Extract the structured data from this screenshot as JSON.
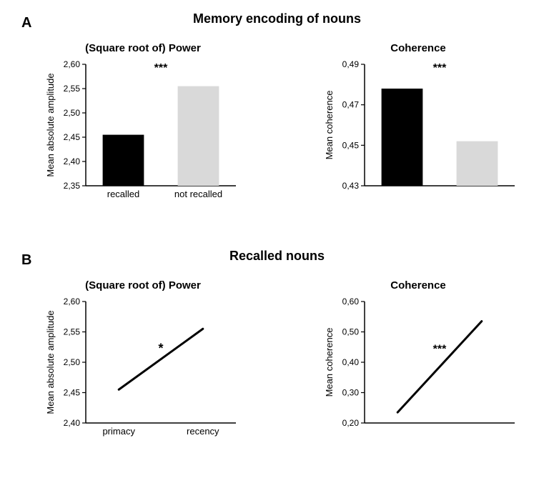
{
  "panelA": {
    "letter": "A",
    "title": "Memory encoding of nouns",
    "title_fontsize": 18,
    "title_fontweight": "bold",
    "letter_fontsize": 20,
    "power": {
      "subtitle": "(Square root of) Power",
      "ylabel": "Mean absolute amplitude",
      "categories": [
        "recalled",
        "not recalled"
      ],
      "values": [
        2.455,
        2.555
      ],
      "bar_colors": [
        "#000000",
        "#d9d9d9"
      ],
      "ylim": [
        2.35,
        2.6
      ],
      "yticks": [
        "2,35",
        "2,40",
        "2,45",
        "2,50",
        "2,55",
        "2,60"
      ],
      "ytick_values": [
        2.35,
        2.4,
        2.45,
        2.5,
        2.55,
        2.6
      ],
      "sig": "***",
      "sig_fontsize": 16,
      "label_fontsize": 13,
      "tick_fontsize": 12,
      "subtitle_fontsize": 15,
      "bar_width": 0.55,
      "background": "#ffffff",
      "axis_color": "#000000"
    },
    "coherence": {
      "subtitle": "Coherence",
      "ylabel": "Mean coherence",
      "categories": [
        "",
        ""
      ],
      "values": [
        0.478,
        0.452
      ],
      "bar_colors": [
        "#000000",
        "#d9d9d9"
      ],
      "ylim": [
        0.43,
        0.49
      ],
      "yticks": [
        "0,43",
        "0,45",
        "0,47",
        "0,49"
      ],
      "ytick_values": [
        0.43,
        0.45,
        0.47,
        0.49
      ],
      "sig": "***",
      "sig_fontsize": 16,
      "label_fontsize": 13,
      "tick_fontsize": 12,
      "subtitle_fontsize": 15,
      "bar_width": 0.55,
      "background": "#ffffff",
      "axis_color": "#000000"
    }
  },
  "panelB": {
    "letter": "B",
    "title": "Recalled nouns",
    "title_fontsize": 18,
    "title_fontweight": "bold",
    "letter_fontsize": 20,
    "power": {
      "subtitle": "(Square root of) Power",
      "ylabel": "Mean absolute amplitude",
      "xcats": [
        "primacy",
        "recency"
      ],
      "yvals": [
        2.455,
        2.555
      ],
      "ylim": [
        2.4,
        2.6
      ],
      "yticks": [
        "2,40",
        "2,45",
        "2,50",
        "2,55",
        "2,60"
      ],
      "ytick_values": [
        2.4,
        2.45,
        2.5,
        2.55,
        2.6
      ],
      "sig": "*",
      "sig_fontsize": 18,
      "label_fontsize": 13,
      "tick_fontsize": 12,
      "subtitle_fontsize": 15,
      "line_color": "#000000",
      "line_width": 3,
      "background": "#ffffff",
      "axis_color": "#000000"
    },
    "coherence": {
      "subtitle": "Coherence",
      "ylabel": "Mean coherence",
      "xcats": [
        "",
        ""
      ],
      "yvals": [
        0.235,
        0.535
      ],
      "ylim": [
        0.2,
        0.6
      ],
      "yticks": [
        "0,20",
        "0,30",
        "0,40",
        "0,50",
        "0,60"
      ],
      "ytick_values": [
        0.2,
        0.3,
        0.4,
        0.5,
        0.6
      ],
      "sig": "***",
      "sig_fontsize": 16,
      "label_fontsize": 13,
      "tick_fontsize": 12,
      "subtitle_fontsize": 15,
      "line_color": "#000000",
      "line_width": 3,
      "background": "#ffffff",
      "axis_color": "#000000"
    }
  }
}
